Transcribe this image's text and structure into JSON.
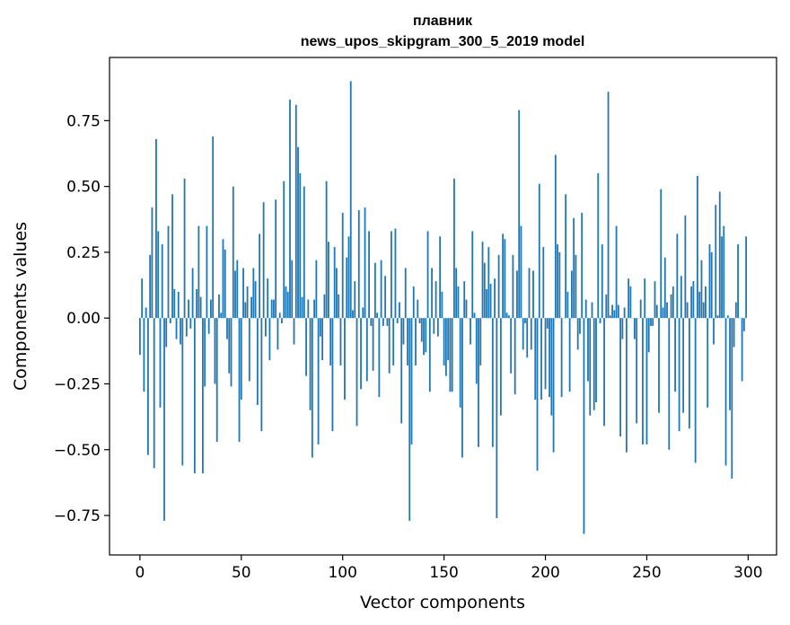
{
  "chart_data": {
    "type": "bar",
    "title": "плавник",
    "subtitle": "news_upos_skipgram_300_5_2019 model",
    "xlabel": "Vector components",
    "ylabel": "Components values",
    "xlim": [
      -15,
      314
    ],
    "ylim": [
      -0.9,
      0.99
    ],
    "xticks": [
      0,
      50,
      100,
      150,
      200,
      250,
      300
    ],
    "yticks": [
      -0.75,
      -0.5,
      -0.25,
      0.0,
      0.25,
      0.5,
      0.75
    ],
    "ytick_labels": [
      "−0.75",
      "−0.50",
      "−0.25",
      "0.00",
      "0.25",
      "0.50",
      "0.75"
    ],
    "bar_color": "#1f77b4",
    "grid": false,
    "x_start": 0,
    "values": [
      -0.14,
      0.15,
      -0.28,
      0.04,
      -0.52,
      0.24,
      0.42,
      -0.57,
      0.68,
      0.33,
      -0.34,
      0.28,
      -0.77,
      -0.11,
      0.35,
      -0.02,
      0.47,
      0.11,
      -0.08,
      0.1,
      -0.1,
      -0.56,
      0.53,
      -0.07,
      0.07,
      -0.04,
      0.19,
      -0.59,
      0.11,
      0.35,
      0.08,
      -0.59,
      -0.26,
      0.35,
      -0.06,
      0.07,
      0.69,
      -0.25,
      -0.47,
      0.09,
      0.02,
      0.3,
      0.26,
      -0.08,
      -0.21,
      -0.26,
      0.5,
      0.18,
      0.22,
      -0.47,
      -0.31,
      0.19,
      0.06,
      0.12,
      -0.24,
      0.08,
      0.19,
      0.14,
      -0.33,
      0.32,
      -0.43,
      0.44,
      -0.07,
      0.15,
      -0.16,
      0.07,
      0.07,
      0.45,
      -0.12,
      0.02,
      -0.02,
      0.52,
      0.12,
      0.1,
      0.83,
      0.22,
      -0.1,
      0.81,
      0.65,
      0.55,
      0.08,
      0.5,
      -0.22,
      0.07,
      -0.35,
      -0.53,
      0.07,
      0.22,
      -0.48,
      -0.07,
      -0.16,
      0.09,
      0.52,
      0.29,
      -0.18,
      -0.43,
      0.27,
      0.19,
      0.09,
      -0.18,
      0.4,
      -0.31,
      0.23,
      0.31,
      0.9,
      0.03,
      0.14,
      -0.41,
      0.41,
      -0.27,
      0.04,
      0.42,
      -0.24,
      0.33,
      -0.03,
      -0.2,
      0.21,
      0.02,
      -0.3,
      0.22,
      -0.03,
      0.16,
      -0.03,
      -0.21,
      0.33,
      -0.18,
      0.34,
      -0.02,
      0.06,
      -0.4,
      -0.1,
      0.19,
      -0.18,
      -0.77,
      -0.48,
      0.12,
      -0.18,
      0.07,
      -0.02,
      -0.09,
      -0.14,
      -0.13,
      0.33,
      -0.28,
      0.19,
      -0.06,
      0.14,
      -0.07,
      0.31,
      0.1,
      -0.18,
      -0.22,
      -0.16,
      -0.28,
      -0.28,
      0.53,
      0.19,
      0.12,
      -0.34,
      -0.53,
      0.14,
      0.07,
      0.0,
      -0.1,
      0.33,
      0.02,
      -0.25,
      -0.49,
      -0.18,
      0.29,
      0.21,
      0.11,
      0.27,
      0.13,
      -0.49,
      0.15,
      -0.76,
      0.24,
      -0.37,
      0.32,
      0.3,
      0.02,
      0.01,
      -0.21,
      0.24,
      -0.29,
      0.18,
      0.79,
      0.35,
      -0.12,
      -0.02,
      -0.15,
      0.19,
      -0.12,
      0.18,
      -0.31,
      -0.58,
      0.51,
      -0.31,
      0.27,
      -0.27,
      -0.04,
      -0.3,
      -0.37,
      -0.51,
      0.62,
      0.28,
      0.25,
      -0.3,
      0.0,
      0.47,
      0.1,
      -0.28,
      0.18,
      0.38,
      0.24,
      -0.12,
      -0.06,
      0.4,
      -0.82,
      0.07,
      -0.24,
      -0.37,
      0.06,
      -0.35,
      -0.32,
      0.55,
      -0.02,
      0.28,
      -0.41,
      0.09,
      0.86,
      0.01,
      0.05,
      0.03,
      0.35,
      0.05,
      -0.45,
      -0.08,
      0.04,
      -0.51,
      0.15,
      0.12,
      0.0,
      -0.08,
      -0.4,
      0.0,
      0.07,
      -0.48,
      0.15,
      -0.48,
      -0.13,
      -0.03,
      -0.03,
      0.14,
      0.05,
      -0.36,
      0.49,
      0.04,
      0.23,
      0.06,
      -0.5,
      0.09,
      0.12,
      -0.28,
      0.32,
      -0.43,
      0.16,
      -0.36,
      0.39,
      0.06,
      -0.42,
      0.12,
      0.14,
      -0.55,
      0.54,
      0.1,
      0.22,
      0.06,
      0.12,
      -0.34,
      0.28,
      0.25,
      -0.1,
      0.43,
      0.01,
      0.48,
      0.31,
      0.35,
      -0.56,
      0.01,
      -0.35,
      -0.61,
      -0.11,
      0.06,
      0.28,
      0.0,
      -0.24,
      -0.05,
      0.31
    ]
  }
}
